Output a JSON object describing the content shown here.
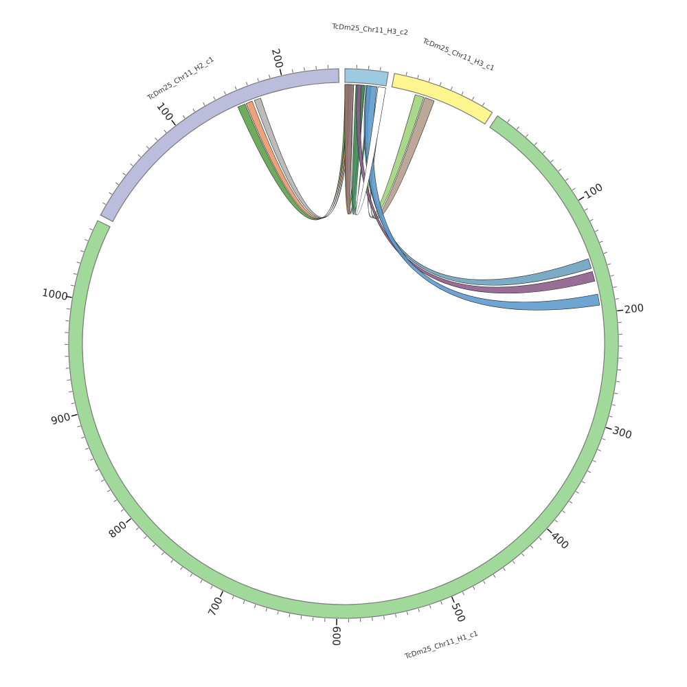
{
  "diagram": {
    "type": "circos",
    "outline_color": "#777777",
    "tick_interval": 10,
    "label_interval": 100,
    "chromosomes": [
      {
        "name": "TcDm25_Chr11_H3_c2",
        "length": 37,
        "color": "#9ecae1"
      },
      {
        "name": "TcDm25_Chr11_H3_c1",
        "length": 90,
        "color": "#fff68f"
      },
      {
        "name": "TcDm25_Chr11_H1_c1",
        "length": 1069,
        "color": "#a1d99b"
      },
      {
        "name": "TcDm25_Chr11_H2_c1",
        "length": 249,
        "color": "#bcbddc"
      }
    ],
    "links": [
      {
        "a": 3,
        "a_start": 155,
        "a_end": 162,
        "b": 0,
        "b_start": 0,
        "b_end": 2,
        "color": "#5aa147"
      },
      {
        "a": 3,
        "a_start": 163,
        "a_end": 169,
        "b": 0,
        "b_start": 2,
        "b_end": 4,
        "color": "#e9966a"
      },
      {
        "a": 3,
        "a_start": 171,
        "a_end": 177,
        "b": 0,
        "b_start": 4,
        "b_end": 6,
        "color": "#b3b3b3"
      },
      {
        "a": 0,
        "a_start": 0,
        "a_end": 3,
        "b": 0,
        "b_start": 12,
        "b_end": 14,
        "color": "#d4c01f"
      },
      {
        "a": 0,
        "a_start": 0,
        "a_end": 8,
        "b": 0,
        "b_start": 16,
        "b_end": 18,
        "color": "#8c6d6d"
      },
      {
        "a": 0,
        "a_start": 9,
        "a_end": 18,
        "b": 0,
        "b_start": 22,
        "b_end": 24,
        "color": "#3c8c5a"
      },
      {
        "a": 1,
        "a_start": 22,
        "a_end": 30,
        "b": 0,
        "b_start": 30,
        "b_end": 33,
        "color": "#9fd27a"
      },
      {
        "a": 1,
        "a_start": 31,
        "a_end": 40,
        "b": 0,
        "b_start": 33,
        "b_end": 36,
        "color": "#b39c8a"
      },
      {
        "a": 2,
        "a_start": 150,
        "a_end": 159,
        "b": 0,
        "b_start": 19,
        "b_end": 23,
        "color": "#6a9fbd"
      },
      {
        "a": 2,
        "a_start": 162,
        "a_end": 171,
        "b": 0,
        "b_start": 11,
        "b_end": 15,
        "color": "#8a5a88"
      },
      {
        "a": 2,
        "a_start": 183,
        "a_end": 193,
        "b": 0,
        "b_start": 20,
        "b_end": 29,
        "color": "#5b98cc"
      },
      {
        "a": 0,
        "a_start": 30,
        "a_end": 37,
        "b": 0,
        "b_start": 8,
        "b_end": 10,
        "color": "#ffffff"
      }
    ]
  }
}
